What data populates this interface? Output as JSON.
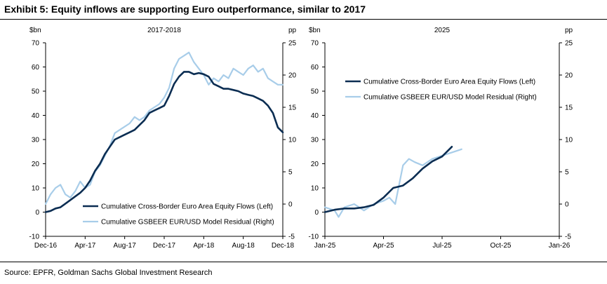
{
  "exhibit_title": "Exhibit 5: Equity inflows are supporting Euro outperformance, similar to 2017",
  "source": "Source: EPFR, Goldman Sachs Global Investment Research",
  "colors": {
    "flows": "#0b2d52",
    "residual": "#a8cde9",
    "axis": "#000000"
  },
  "chart_data": [
    {
      "type": "line",
      "title": "2017-2018",
      "left_unit": "$bn",
      "right_unit": "pp",
      "left_ylim": [
        -10,
        70
      ],
      "left_ticks": [
        -10,
        0,
        10,
        20,
        30,
        40,
        50,
        60,
        70
      ],
      "right_ylim": [
        -5,
        25
      ],
      "right_ticks": [
        -5,
        0,
        5,
        10,
        15,
        20,
        25
      ],
      "x_ticks": [
        "Dec-16",
        "Apr-17",
        "Aug-17",
        "Dec-17",
        "Apr-18",
        "Aug-18",
        "Dec-18"
      ],
      "x_range": [
        0,
        24
      ],
      "legend": [
        "Cumulative Cross-Border Euro Area Equity Flows (Left)",
        "Cumulative GSBEER EUR/USD Model Residual (Right)"
      ],
      "legend_position": "bottom-right",
      "series": [
        {
          "name": "Cumulative Cross-Border Euro Area Equity Flows (Left)",
          "axis": "left",
          "x": [
            0,
            0.5,
            1,
            1.5,
            2,
            2.5,
            3,
            3.5,
            4,
            4.5,
            5,
            5.5,
            6,
            6.5,
            7,
            7.5,
            8,
            8.5,
            9,
            9.5,
            10,
            10.5,
            11,
            11.5,
            12,
            12.5,
            13,
            13.5,
            14,
            14.5,
            15,
            15.5,
            16,
            16.5,
            17,
            17.5,
            18,
            18.5,
            19,
            19.5,
            20,
            20.5,
            21,
            21.5,
            22,
            22.5,
            23,
            23.5,
            24
          ],
          "values": [
            0,
            0.5,
            1.5,
            2,
            3.5,
            5,
            6.5,
            8,
            10,
            13,
            17,
            20,
            24,
            27,
            30,
            31,
            32,
            33,
            34,
            36,
            38,
            41,
            42,
            43,
            44,
            48,
            53,
            56,
            58,
            58,
            57,
            57.5,
            57,
            56,
            53,
            52,
            51,
            51,
            50.5,
            50,
            49,
            48.5,
            48,
            47,
            46,
            44,
            41,
            35,
            33
          ]
        },
        {
          "name": "Cumulative GSBEER EUR/USD Model Residual (Right)",
          "axis": "right",
          "x": [
            0,
            0.5,
            1,
            1.5,
            2,
            2.5,
            3,
            3.5,
            4,
            4.5,
            5,
            5.5,
            6,
            6.5,
            7,
            7.5,
            8,
            8.5,
            9,
            9.5,
            10,
            10.5,
            11,
            11.5,
            12,
            12.5,
            13,
            13.5,
            14,
            14.5,
            15,
            15.5,
            16,
            16.5,
            17,
            17.5,
            18,
            18.5,
            19,
            19.5,
            20,
            20.5,
            21,
            21.5,
            22,
            22.5,
            23,
            23.5,
            24
          ],
          "values": [
            0,
            1.5,
            2.5,
            3,
            1.5,
            1,
            2,
            3.5,
            2.5,
            3,
            5,
            6,
            7.5,
            9,
            11,
            11.5,
            12,
            12.5,
            13.5,
            13,
            13.5,
            14.5,
            15,
            15.5,
            16.5,
            18,
            21,
            22.5,
            23,
            23.5,
            22,
            21,
            20,
            18.5,
            19.5,
            19,
            20,
            19.5,
            21,
            20.5,
            20,
            21,
            21.5,
            20.5,
            21,
            19.5,
            19,
            18.5,
            18.5
          ]
        }
      ]
    },
    {
      "type": "line",
      "title": "2025",
      "left_unit": "$bn",
      "right_unit": "pp",
      "left_ylim": [
        -10,
        70
      ],
      "left_ticks": [
        -10,
        0,
        10,
        20,
        30,
        40,
        50,
        60,
        70
      ],
      "right_ylim": [
        -5,
        25
      ],
      "right_ticks": [
        -5,
        0,
        5,
        10,
        15,
        20,
        25
      ],
      "x_ticks": [
        "Jan-25",
        "Apr-25",
        "Jul-25",
        "Oct-25",
        "Jan-26"
      ],
      "x_range": [
        0,
        12
      ],
      "legend": [
        "Cumulative Cross-Border Euro Area Equity Flows (Left)",
        "Cumulative GSBEER EUR/USD Model Residual (Right)"
      ],
      "legend_position": "top-left",
      "series": [
        {
          "name": "Cumulative Cross-Border Euro Area Equity Flows (Left)",
          "axis": "left",
          "x": [
            0,
            0.5,
            1,
            1.5,
            2,
            2.5,
            3,
            3.5,
            4,
            4.5,
            5,
            5.5,
            6,
            6.5
          ],
          "values": [
            0,
            1,
            1.5,
            1.5,
            2,
            3,
            6,
            10,
            11,
            14,
            18,
            21,
            23,
            27
          ]
        },
        {
          "name": "Cumulative GSBEER EUR/USD Model Residual (Right)",
          "axis": "right",
          "x": [
            0,
            0.5,
            0.7,
            1,
            1.5,
            2,
            2.5,
            3,
            3.3,
            3.6,
            4,
            4.3,
            4.6,
            5,
            5.5,
            6,
            6.5,
            7
          ],
          "values": [
            -0.5,
            -1,
            -2,
            -0.5,
            0,
            -1,
            0,
            0.5,
            1,
            0,
            6,
            7,
            6.5,
            6,
            7,
            7.5,
            8,
            8.5
          ]
        }
      ]
    }
  ]
}
